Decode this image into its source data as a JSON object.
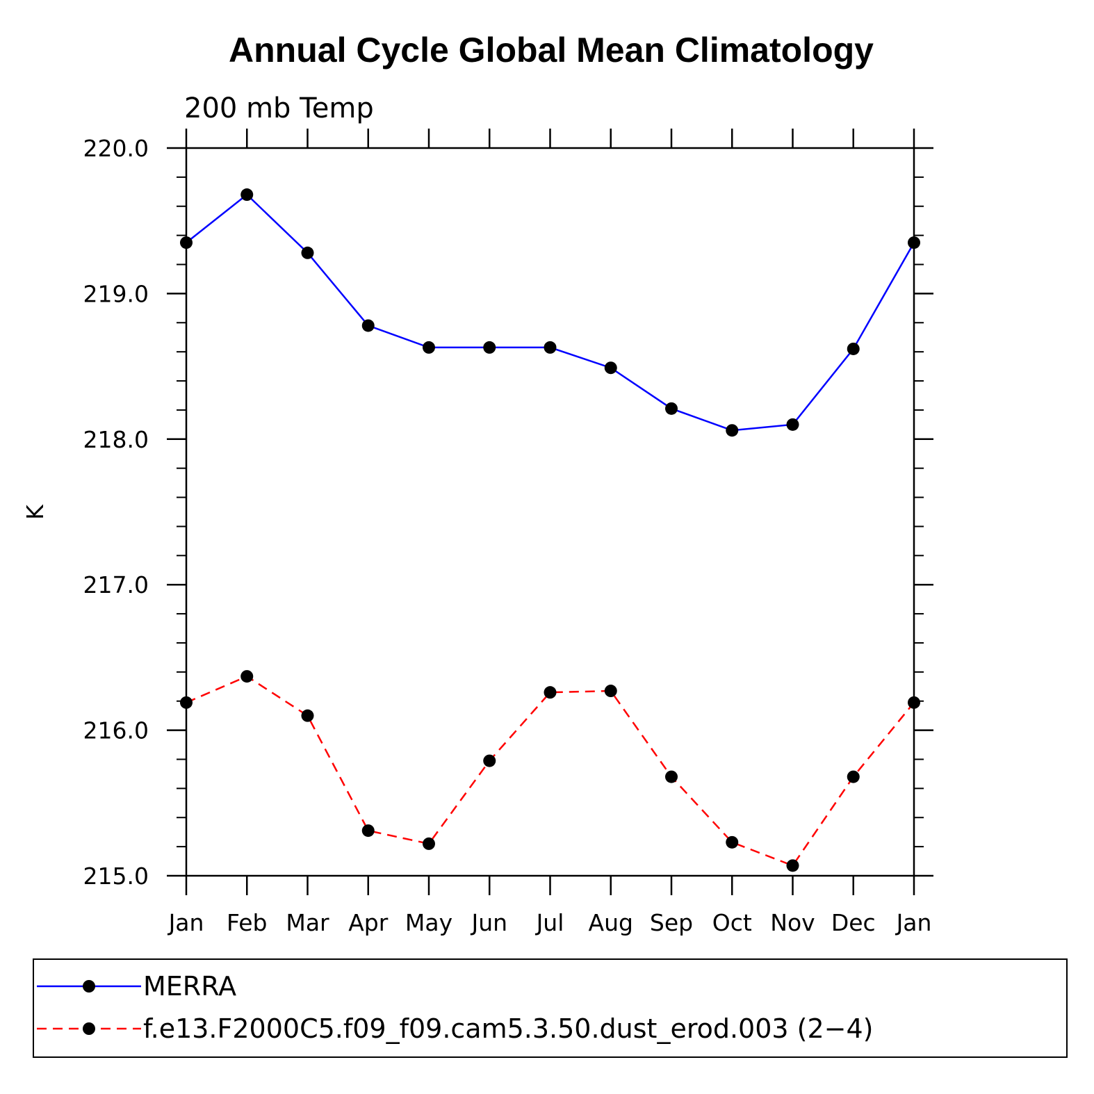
{
  "chart_data": {
    "type": "line",
    "title": "Annual Cycle Global Mean Climatology",
    "subtitle": "200 mb Temp",
    "ylabel": "K",
    "xlabel": "",
    "categories": [
      "Jan",
      "Feb",
      "Mar",
      "Apr",
      "May",
      "Jun",
      "Jul",
      "Aug",
      "Sep",
      "Oct",
      "Nov",
      "Dec",
      "Jan"
    ],
    "ylim": [
      215.0,
      220.0
    ],
    "yticks": [
      215.0,
      216.0,
      217.0,
      218.0,
      219.0,
      220.0
    ],
    "ytick_labels": [
      "215.0",
      "216.0",
      "217.0",
      "218.0",
      "219.0",
      "220.0"
    ],
    "grid": false,
    "legend_position": "bottom",
    "series": [
      {
        "name": "MERRA",
        "color": "#0000ff",
        "line_style": "solid",
        "marker": "filled-circle",
        "values": [
          219.35,
          219.68,
          219.28,
          218.78,
          218.63,
          218.63,
          218.63,
          218.49,
          218.21,
          218.06,
          218.1,
          218.62,
          219.35
        ]
      },
      {
        "name": "f.e13.F2000C5.f09_f09.cam5.3.50.dust_erod.003 (2−4)",
        "color": "#ff0000",
        "line_style": "dashed",
        "marker": "filled-circle",
        "values": [
          216.19,
          216.37,
          216.1,
          215.31,
          215.22,
          215.79,
          216.26,
          216.27,
          215.68,
          215.23,
          215.07,
          215.68,
          216.19
        ]
      }
    ]
  }
}
